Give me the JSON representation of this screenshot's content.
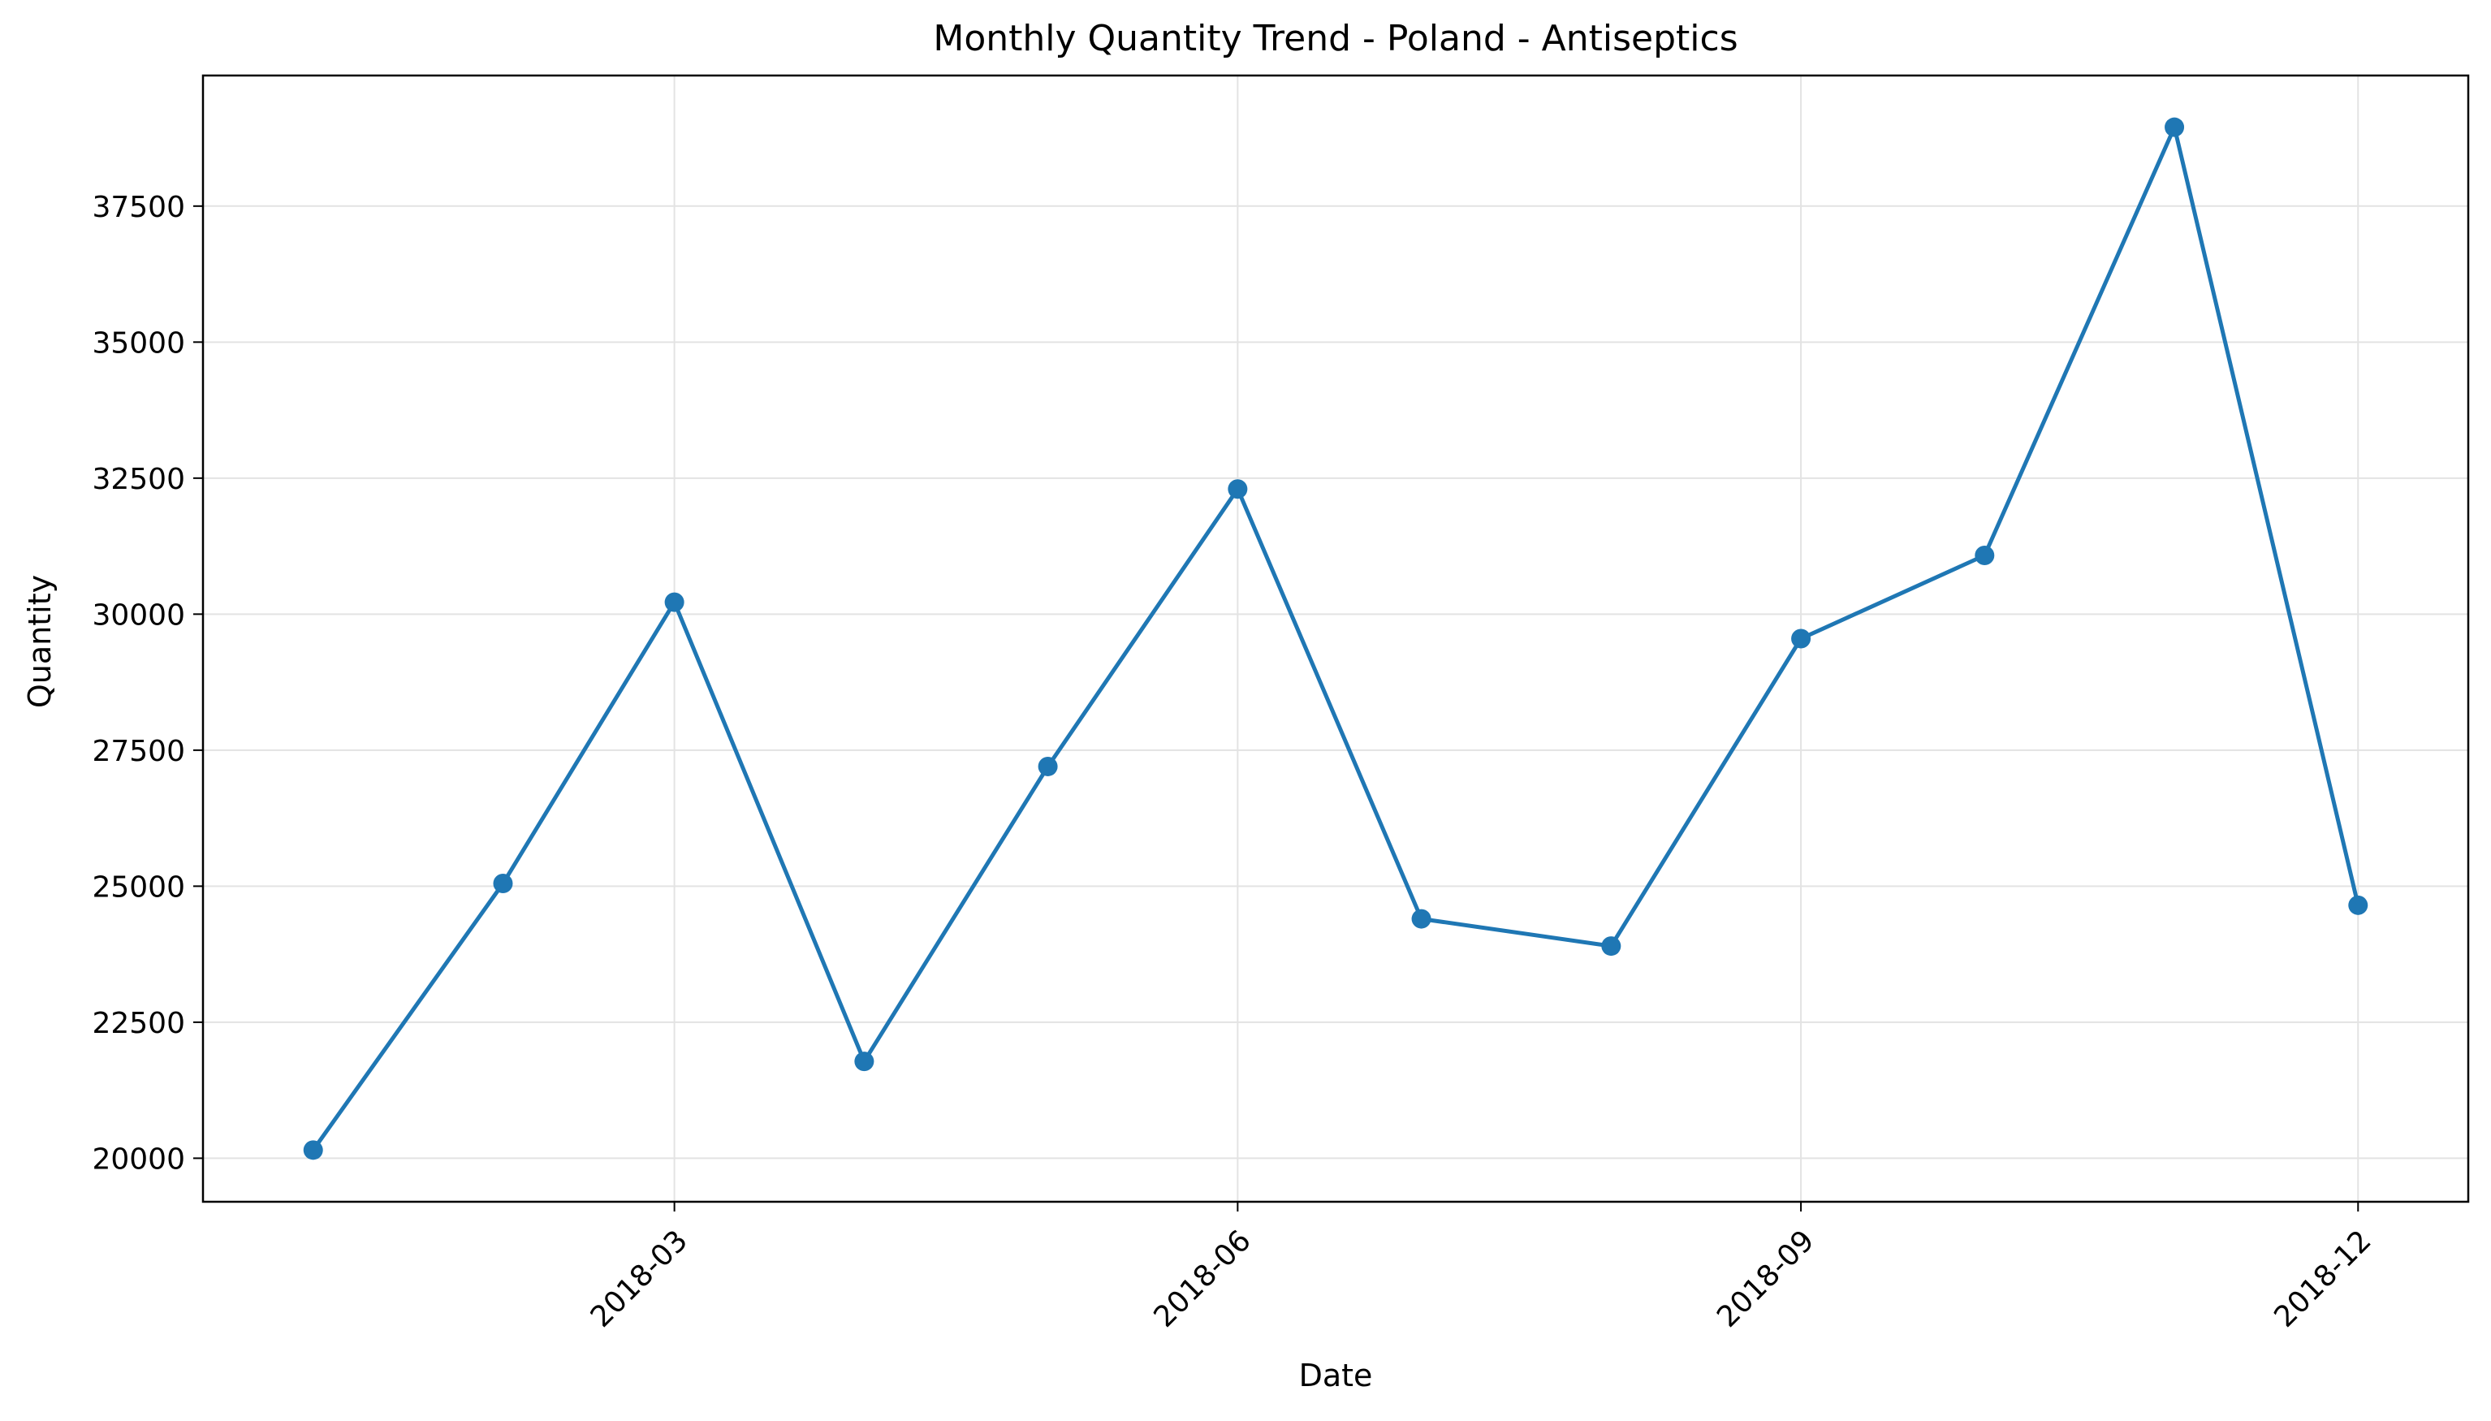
{
  "chart_data": {
    "type": "line",
    "title": "Monthly Quantity Trend - Poland - Antiseptics",
    "xlabel": "Date",
    "ylabel": "Quantity",
    "x": [
      "2018-01-01",
      "2018-02-01",
      "2018-03-01",
      "2018-04-01",
      "2018-05-01",
      "2018-06-01",
      "2018-07-01",
      "2018-08-01",
      "2018-09-01",
      "2018-10-01",
      "2018-11-01",
      "2018-12-01"
    ],
    "series": [
      {
        "values": [
          20150,
          25050,
          30220,
          21780,
          27200,
          32300,
          24400,
          23900,
          29550,
          31080,
          38950,
          24650
        ],
        "color": "#1f77b4",
        "marker": "circle"
      }
    ],
    "x_ticks": [
      "2018-03",
      "2018-06",
      "2018-09",
      "2018-12"
    ],
    "x_tick_dates": [
      "2018-03-01",
      "2018-06-01",
      "2018-09-01",
      "2018-12-01"
    ],
    "y_ticks": [
      20000,
      22500,
      25000,
      27500,
      30000,
      32500,
      35000,
      37500
    ],
    "xlim": [
      "2017-12-14",
      "2018-12-19"
    ],
    "ylim": [
      19200,
      39900
    ],
    "grid": true,
    "legend": "none"
  }
}
